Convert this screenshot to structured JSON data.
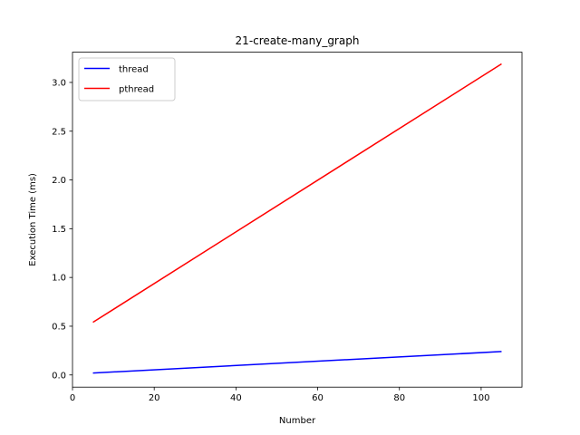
{
  "chart_data": {
    "type": "line",
    "title": "21-create-many_graph",
    "xlabel": "Number",
    "ylabel": "Execution Time (ms)",
    "xlim": [
      0,
      110
    ],
    "ylim": [
      -0.125,
      3.31
    ],
    "xticks": [
      0,
      20,
      40,
      60,
      80,
      100
    ],
    "yticks": [
      0.0,
      0.5,
      1.0,
      1.5,
      2.0,
      2.5,
      3.0
    ],
    "xtick_labels": [
      "0",
      "20",
      "40",
      "60",
      "80",
      "100"
    ],
    "ytick_labels": [
      "0.0",
      "0.5",
      "1.0",
      "1.5",
      "2.0",
      "2.5",
      "3.0"
    ],
    "grid": false,
    "legend": "top-left",
    "series": [
      {
        "name": "thread",
        "color": "#0000ff",
        "x": [
          5,
          105
        ],
        "y": [
          0.02,
          0.24
        ]
      },
      {
        "name": "pthread",
        "color": "#ff0000",
        "x": [
          5,
          105
        ],
        "y": [
          0.54,
          3.19
        ]
      }
    ]
  }
}
